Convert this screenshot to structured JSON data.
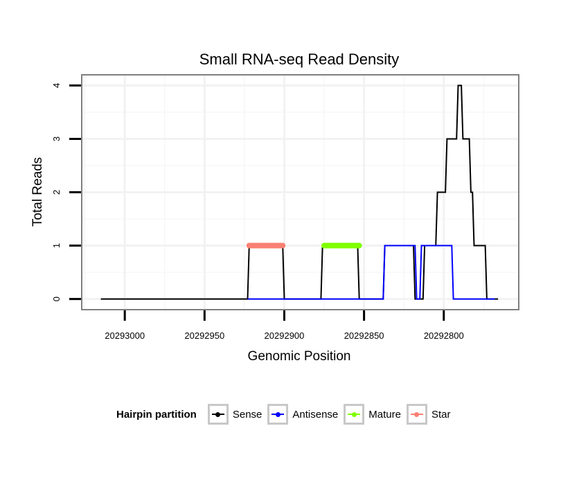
{
  "chart_data": {
    "type": "line",
    "title": "Small RNA-seq Read Density",
    "xlabel": "Genomic Position",
    "ylabel": "Total Reads",
    "x_reversed": true,
    "xlim": [
      20293027,
      20292753
    ],
    "ylim": [
      -0.2,
      4.2
    ],
    "xticks": [
      20293000,
      20292950,
      20292900,
      20292850,
      20292800
    ],
    "xtick_labels": [
      "20293000",
      "20292950",
      "20292900",
      "20292850",
      "20292800"
    ],
    "yticks": [
      0,
      1,
      2,
      3,
      4
    ],
    "ytick_labels": [
      "0",
      "1",
      "2",
      "3",
      "4"
    ],
    "grid": true,
    "legend": {
      "title": "Hairpin partition",
      "position": "bottom",
      "entries": [
        {
          "name": "Sense",
          "color": "#000000"
        },
        {
          "name": "Antisense",
          "color": "#0000ff"
        },
        {
          "name": "Mature",
          "color": "#7fff00"
        },
        {
          "name": "Star",
          "color": "#fa8072"
        }
      ]
    },
    "series": [
      {
        "name": "Sense",
        "color": "#000000",
        "style": "line",
        "x": [
          20293015,
          20292923,
          20292922,
          20292901,
          20292900,
          20292877,
          20292876,
          20292854,
          20292853,
          20292838,
          20292837,
          20292819,
          20292818,
          20292813,
          20292812,
          20292805,
          20292804,
          20292799,
          20292798,
          20292792,
          20292791,
          20292789,
          20292788,
          20292784,
          20292783,
          20292782,
          20292781,
          20292774,
          20292773,
          20292766
        ],
        "y": [
          0,
          0,
          1,
          1,
          0,
          0,
          1,
          1,
          0,
          0,
          1,
          1,
          0,
          0,
          1,
          1,
          2,
          2,
          3,
          3,
          4,
          4,
          3,
          3,
          2,
          2,
          1,
          1,
          0,
          0
        ]
      },
      {
        "name": "Antisense",
        "color": "#0000ff",
        "style": "line",
        "x": [
          20292923,
          20292854,
          20292853,
          20292838,
          20292837,
          20292818,
          20292817,
          20292815,
          20292814,
          20292795,
          20292794,
          20292768
        ],
        "y": [
          0,
          0,
          0,
          0,
          1,
          1,
          0,
          0,
          1,
          1,
          0,
          0
        ]
      },
      {
        "name": "Mature",
        "color": "#7fff00",
        "style": "points",
        "x": [
          20292875,
          20292853
        ],
        "y": [
          1,
          1
        ]
      },
      {
        "name": "Star",
        "color": "#fa8072",
        "style": "points",
        "x": [
          20292922,
          20292901
        ],
        "y": [
          1,
          1
        ]
      }
    ]
  }
}
